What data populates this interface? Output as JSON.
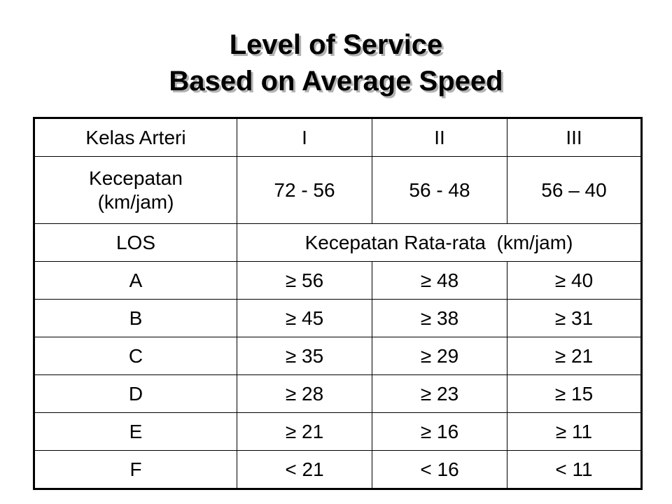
{
  "title": {
    "line1": "Level of Service",
    "line2": "Based on Average Speed"
  },
  "table": {
    "header": {
      "label": "Kelas Arteri",
      "classes": [
        "I",
        "II",
        "III"
      ]
    },
    "speed_row": {
      "label_line1": "Kecepatan",
      "label_line2": "(km/jam)",
      "ranges": [
        "72 - 56",
        "56 - 48",
        "56 – 40"
      ]
    },
    "los_row": {
      "label": "LOS",
      "span_label": "Kecepatan Rata-rata  (km/jam)"
    },
    "rows": [
      {
        "grade": "A",
        "values": [
          "≥ 56",
          "≥ 48",
          "≥ 40"
        ]
      },
      {
        "grade": "B",
        "values": [
          "≥ 45",
          "≥ 38",
          "≥ 31"
        ]
      },
      {
        "grade": "C",
        "values": [
          "≥ 35",
          "≥ 29",
          "≥ 21"
        ]
      },
      {
        "grade": "D",
        "values": [
          "≥ 28",
          "≥ 23",
          "≥ 15"
        ]
      },
      {
        "grade": "E",
        "values": [
          "≥ 21",
          "≥ 16",
          "≥ 11"
        ]
      },
      {
        "grade": "F",
        "values": [
          "< 21",
          "< 16",
          "< 11"
        ]
      }
    ]
  }
}
